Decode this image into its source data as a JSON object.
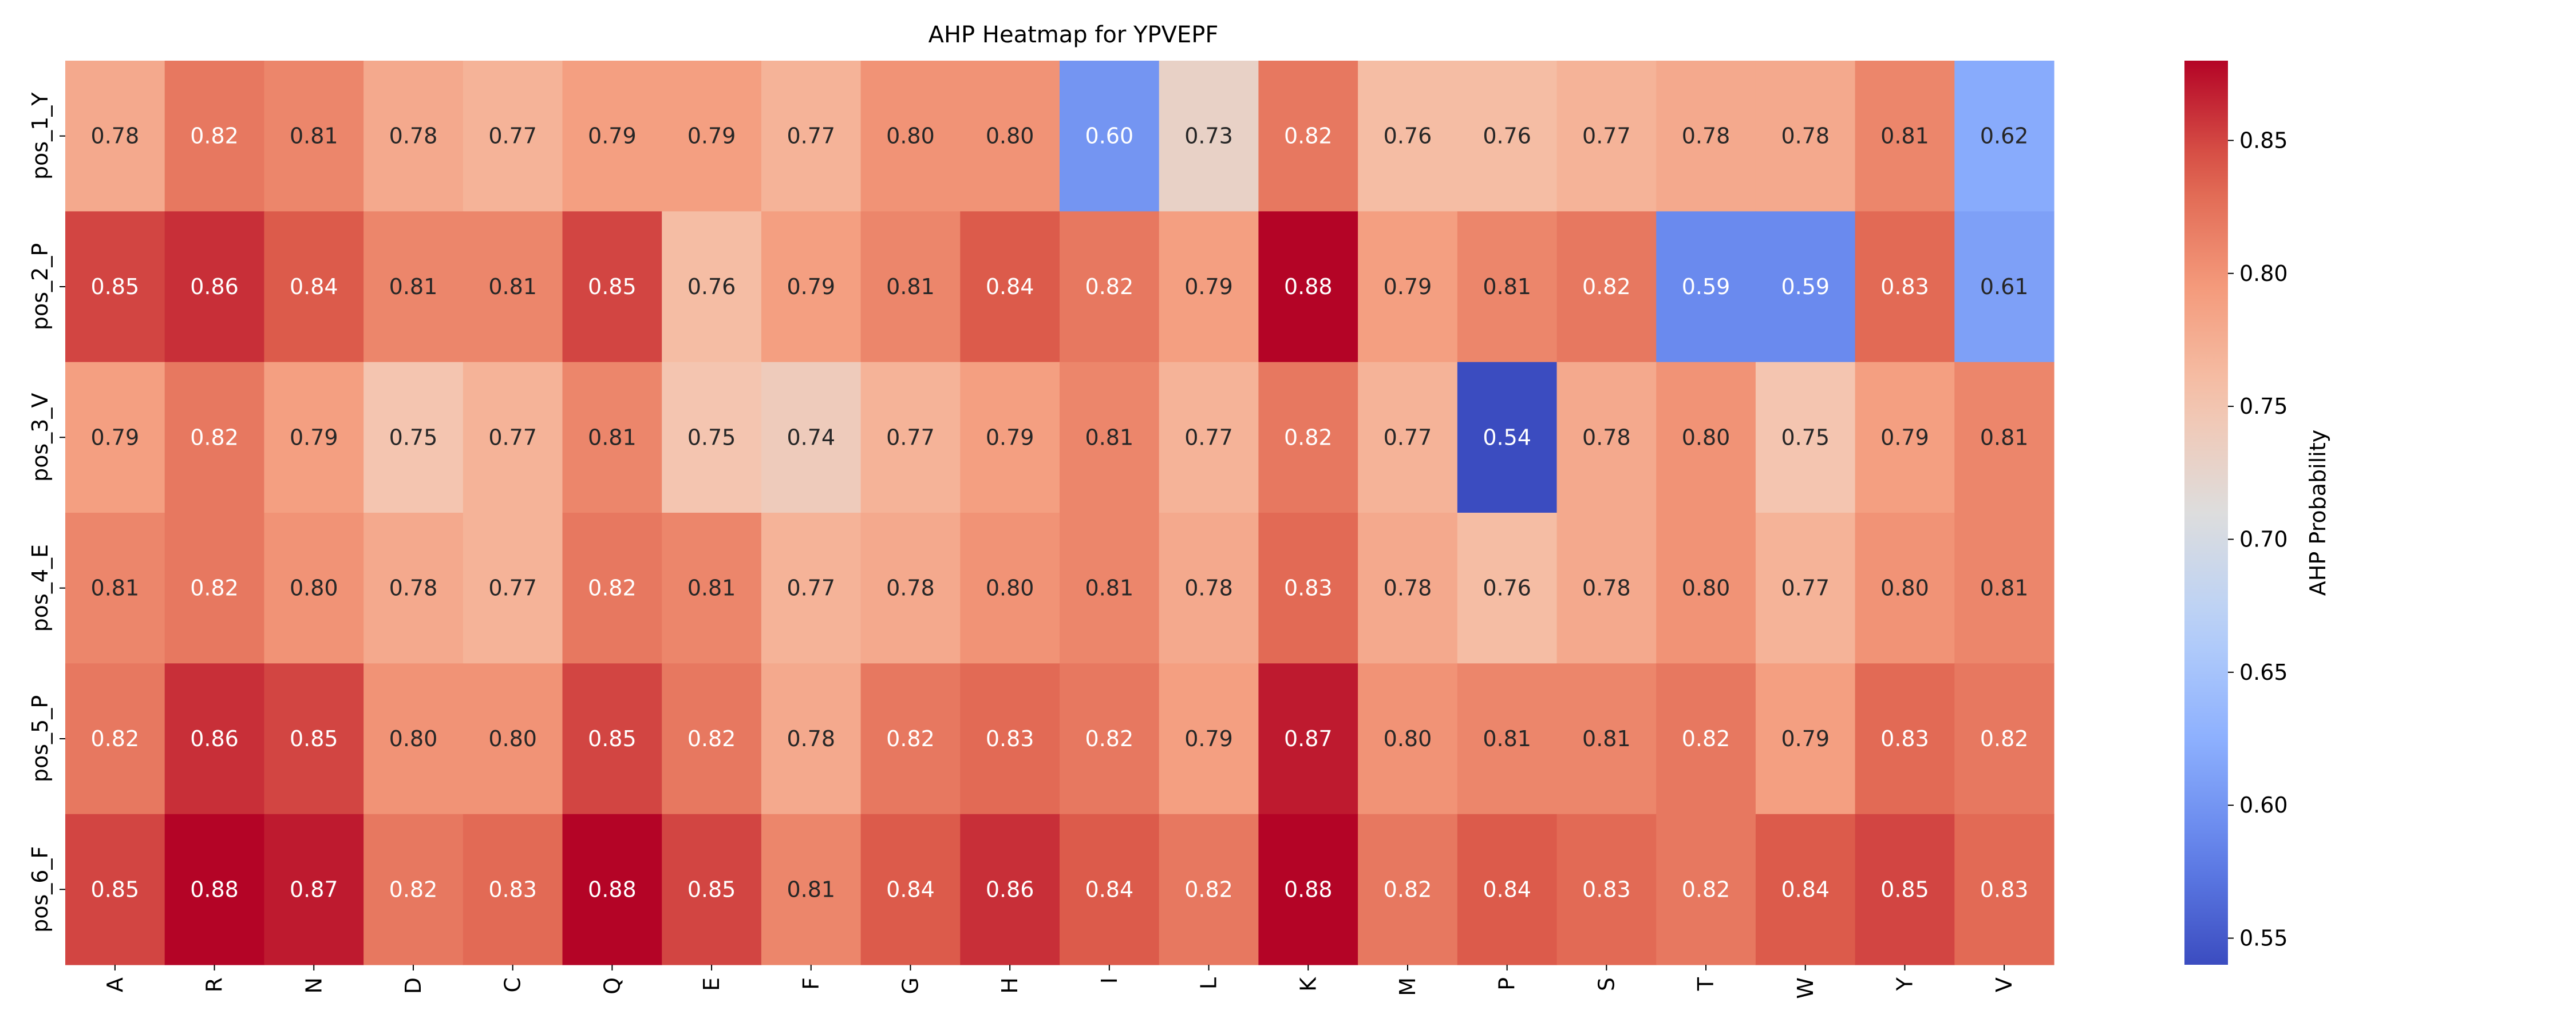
{
  "chart_data": {
    "type": "heatmap",
    "title": "AHP Heatmap for YPVEPF",
    "xlabel": "",
    "ylabel": "",
    "x_categories": [
      "A",
      "R",
      "N",
      "D",
      "C",
      "Q",
      "E",
      "F",
      "G",
      "H",
      "I",
      "L",
      "K",
      "M",
      "P",
      "S",
      "T",
      "W",
      "Y",
      "V"
    ],
    "y_categories": [
      "pos_1_Y",
      "pos_2_P",
      "pos_3_V",
      "pos_4_E",
      "pos_5_P",
      "pos_6_F"
    ],
    "values": [
      [
        0.78,
        0.82,
        0.81,
        0.78,
        0.77,
        0.79,
        0.79,
        0.77,
        0.8,
        0.8,
        0.6,
        0.73,
        0.82,
        0.76,
        0.76,
        0.77,
        0.78,
        0.78,
        0.81,
        0.62
      ],
      [
        0.85,
        0.86,
        0.84,
        0.81,
        0.81,
        0.85,
        0.76,
        0.79,
        0.81,
        0.84,
        0.82,
        0.79,
        0.88,
        0.79,
        0.81,
        0.82,
        0.59,
        0.59,
        0.83,
        0.61
      ],
      [
        0.79,
        0.82,
        0.79,
        0.75,
        0.77,
        0.81,
        0.75,
        0.74,
        0.77,
        0.79,
        0.81,
        0.77,
        0.82,
        0.77,
        0.54,
        0.78,
        0.8,
        0.75,
        0.79,
        0.81
      ],
      [
        0.81,
        0.82,
        0.8,
        0.78,
        0.77,
        0.82,
        0.81,
        0.77,
        0.78,
        0.8,
        0.81,
        0.78,
        0.83,
        0.78,
        0.76,
        0.78,
        0.8,
        0.77,
        0.8,
        0.81
      ],
      [
        0.82,
        0.86,
        0.85,
        0.8,
        0.8,
        0.85,
        0.82,
        0.78,
        0.82,
        0.83,
        0.82,
        0.79,
        0.87,
        0.8,
        0.81,
        0.81,
        0.82,
        0.79,
        0.83,
        0.82
      ],
      [
        0.85,
        0.88,
        0.87,
        0.82,
        0.83,
        0.88,
        0.85,
        0.81,
        0.84,
        0.86,
        0.84,
        0.82,
        0.88,
        0.82,
        0.84,
        0.83,
        0.82,
        0.84,
        0.85,
        0.83
      ]
    ],
    "value_format": "0.00",
    "colormap": "coolwarm",
    "vmin": 0.54,
    "vmax": 0.88,
    "colorbar": {
      "label": "AHP Probability",
      "ticks": [
        0.55,
        0.6,
        0.65,
        0.7,
        0.75,
        0.8,
        0.85
      ]
    },
    "grid": false
  }
}
